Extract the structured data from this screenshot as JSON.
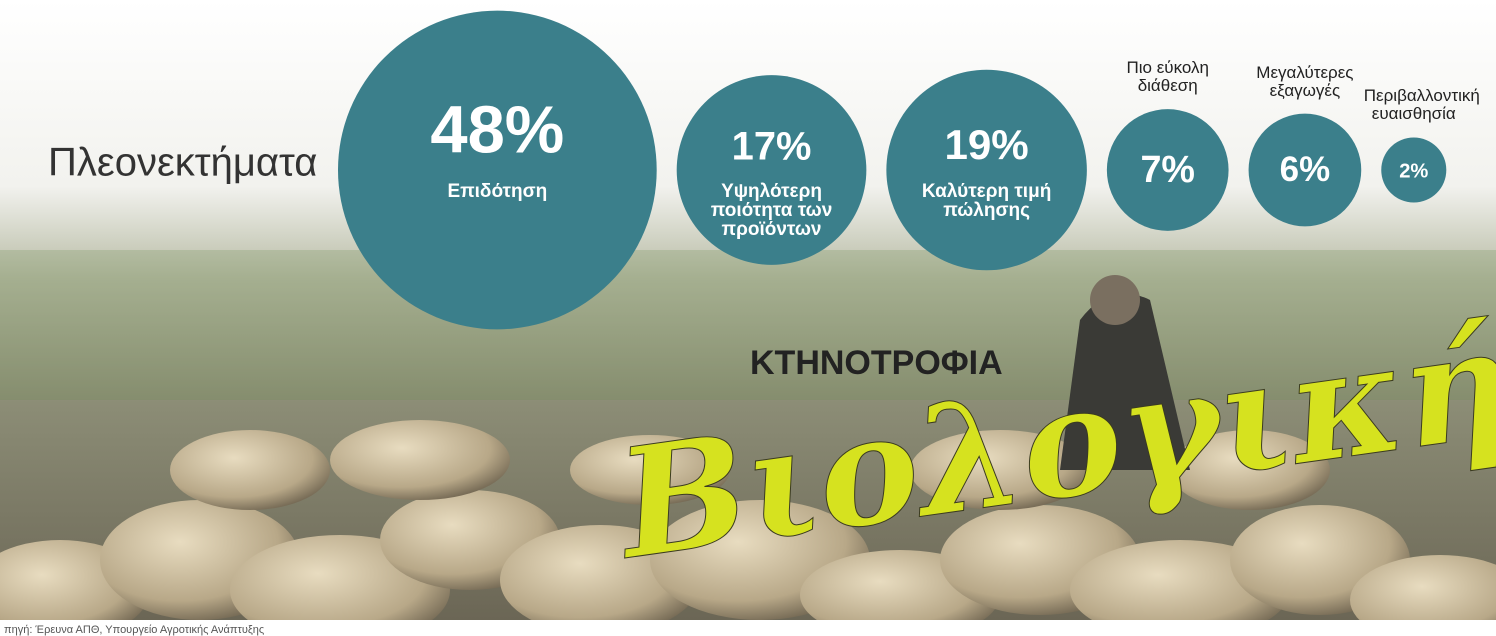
{
  "chart_data": {
    "type": "bubble",
    "title": "Πλεονεκτήματα",
    "categories": [
      "Επιδότηση",
      "Υψηλότερη ποιότητα των προϊόντων",
      "Καλύτερη τιμή πώλησης",
      "Πιο εύκολη διάθεση",
      "Μεγαλύτερες εξαγωγές",
      "Περιβαλλοντική ευαισθησία"
    ],
    "values": [
      48,
      17,
      19,
      7,
      6,
      2
    ],
    "value_labels": [
      "48%",
      "17%",
      "19%",
      "7%",
      "6%",
      "2%"
    ],
    "color": "#3b7f8b"
  },
  "headline": {
    "kicker": "ΚΤΗΝΟΤΡΟΦΙΑ",
    "title": "Βιολογική"
  },
  "source": "πηγή: Έρευνα ΑΠΘ, Υπουργείο Αγροτικής Ανάπτυξης"
}
